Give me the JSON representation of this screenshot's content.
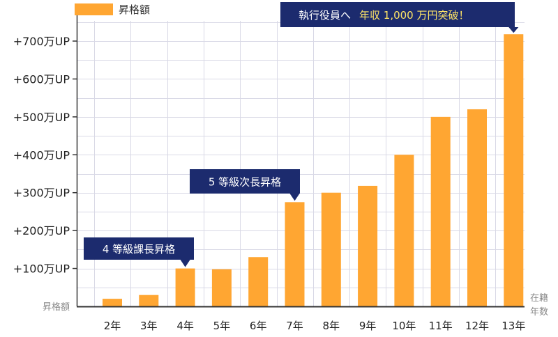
{
  "chart_data": {
    "type": "bar",
    "legend": "昇格額",
    "y_axis_label": "昇格額",
    "x_axis_label_line1": "在籍",
    "x_axis_label_line2": "年数",
    "categories": [
      "2年",
      "3年",
      "4年",
      "5年",
      "6年",
      "7年",
      "8年",
      "9年",
      "10年",
      "11年",
      "12年",
      "13年"
    ],
    "values": [
      20,
      30,
      100,
      98,
      130,
      275,
      300,
      318,
      400,
      500,
      520,
      718
    ],
    "ylim": [
      0,
      750
    ],
    "ytick_values": [
      100,
      200,
      300,
      400,
      500,
      600,
      700
    ],
    "ytick_labels": [
      "+100万UP",
      "+200万UP",
      "+300万UP",
      "+400万UP",
      "+500万UP",
      "+600万UP",
      "+700万UP"
    ],
    "grid": true,
    "legend_position": "top-left",
    "bar_color": "#FFA632",
    "callout_color": "#1C2B6E",
    "callout_highlight_color": "#FFE566",
    "annotations": [
      {
        "text": "4 等級課長昇格",
        "category": "4年"
      },
      {
        "text": "5 等級次長昇格",
        "category": "7年"
      },
      {
        "text": "執行役員へ",
        "highlight": "年収 1,000 万円突破！",
        "category": "13年"
      }
    ]
  }
}
